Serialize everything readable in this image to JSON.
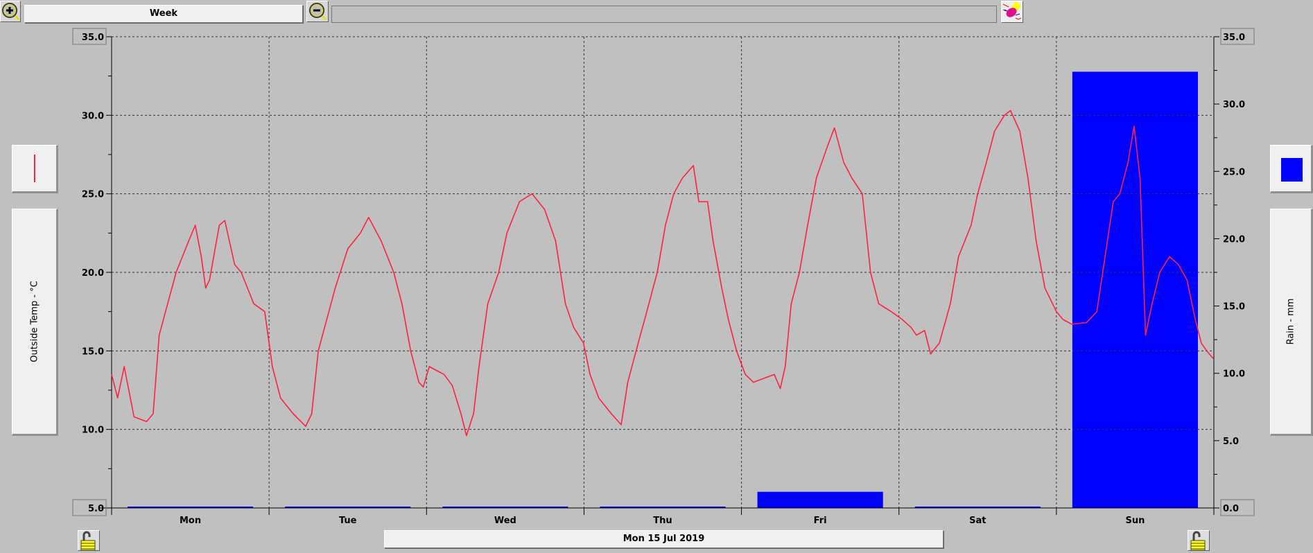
{
  "toolbar": {
    "zoom_in_icon": "zoom-in-magnifier-icon",
    "period_label": "Week",
    "zoom_out_icon": "zoom-out-magnifier-icon",
    "status_field": "",
    "eraser_icon": "eraser-icon"
  },
  "left_panel": {
    "legend_icon": "red-line-icon",
    "axis_title": "Outside Temp - °C"
  },
  "right_panel": {
    "legend_icon": "blue-square-icon",
    "axis_title": "Rain - mm"
  },
  "footer": {
    "date_label": "Mon 15 Jul 2019",
    "lock_icon": "padlock-icon"
  },
  "colors": {
    "temperature": "#ff2040",
    "rain": "#0000ff",
    "background": "#c0c0c0"
  },
  "chart_data": {
    "type": "line+bar",
    "categories": [
      "Mon",
      "Tue",
      "Wed",
      "Thu",
      "Fri",
      "Sat",
      "Sun"
    ],
    "grid": true,
    "left_axis": {
      "title": "Outside Temp - °C",
      "ylim": [
        5,
        35
      ],
      "ticks": [
        "35.0",
        "30.0",
        "25.0",
        "20.0",
        "15.0",
        "10.0",
        "5.0"
      ]
    },
    "right_axis": {
      "title": "Rain - mm",
      "ylim": [
        0,
        35
      ],
      "ticks": [
        "35.0",
        "30.0",
        "25.0",
        "20.0",
        "15.0",
        "10.0",
        "5.0",
        "0.0"
      ]
    },
    "series": [
      {
        "name": "Outside Temp - °C",
        "type": "line",
        "axis": "left",
        "color": "#ff2040",
        "points": [
          [
            "Mon 00:00",
            13.5
          ],
          [
            "Mon 00:55",
            12
          ],
          [
            "Mon 01:55",
            14
          ],
          [
            "Mon 03:25",
            10.8
          ],
          [
            "Mon 05:20",
            10.5
          ],
          [
            "Mon 06:20",
            11
          ],
          [
            "Mon 07:15",
            16
          ],
          [
            "Mon 09:50",
            20
          ],
          [
            "Mon 11:45",
            22
          ],
          [
            "Mon 12:45",
            23
          ],
          [
            "Mon 13:40",
            21
          ],
          [
            "Mon 14:20",
            19
          ],
          [
            "Mon 14:55",
            19.5
          ],
          [
            "Mon 16:25",
            23
          ],
          [
            "Mon 17:15",
            23.3
          ],
          [
            "Mon 18:45",
            20.5
          ],
          [
            "Mon 19:45",
            20
          ],
          [
            "Mon 21:40",
            18
          ],
          [
            "Mon 23:20",
            17.5
          ],
          [
            "Tue 00:30",
            14
          ],
          [
            "Tue 01:45",
            12
          ],
          [
            "Tue 03:40",
            11
          ],
          [
            "Tue 05:35",
            10.2
          ],
          [
            "Tue 06:30",
            11
          ],
          [
            "Tue 07:30",
            15
          ],
          [
            "Tue 10:05",
            19
          ],
          [
            "Tue 12:00",
            21.5
          ],
          [
            "Tue 13:55",
            22.5
          ],
          [
            "Tue 15:10",
            23.5
          ],
          [
            "Tue 17:05",
            22
          ],
          [
            "Tue 19:00",
            20
          ],
          [
            "Tue 20:15",
            18
          ],
          [
            "Tue 21:35",
            15
          ],
          [
            "Tue 22:50",
            13
          ],
          [
            "Tue 23:30",
            12.7
          ],
          [
            "Wed 00:25",
            14
          ],
          [
            "Wed 02:40",
            13.5
          ],
          [
            "Wed 03:55",
            12.8
          ],
          [
            "Wed 05:15",
            11
          ],
          [
            "Wed 06:05",
            9.6
          ],
          [
            "Wed 07:10",
            11
          ],
          [
            "Wed 08:00",
            14
          ],
          [
            "Wed 09:20",
            18
          ],
          [
            "Wed 11:00",
            20
          ],
          [
            "Wed 12:15",
            22.5
          ],
          [
            "Wed 14:10",
            24.5
          ],
          [
            "Wed 16:05",
            25
          ],
          [
            "Wed 18:00",
            24
          ],
          [
            "Wed 19:40",
            22
          ],
          [
            "Wed 21:10",
            18
          ],
          [
            "Wed 22:25",
            16.5
          ],
          [
            "Wed 23:55",
            15.5
          ],
          [
            "Thu 00:55",
            13.5
          ],
          [
            "Thu 02:15",
            12
          ],
          [
            "Thu 04:10",
            11
          ],
          [
            "Thu 05:40",
            10.3
          ],
          [
            "Thu 06:40",
            13
          ],
          [
            "Thu 08:35",
            16
          ],
          [
            "Thu 09:15",
            17
          ],
          [
            "Thu 11:10",
            20
          ],
          [
            "Thu 12:25",
            23
          ],
          [
            "Thu 13:40",
            25
          ],
          [
            "Thu 15:00",
            26
          ],
          [
            "Thu 16:40",
            26.8
          ],
          [
            "Thu 17:30",
            24.5
          ],
          [
            "Thu 18:50",
            24.5
          ],
          [
            "Thu 19:40",
            22
          ],
          [
            "Thu 21:00",
            19
          ],
          [
            "Thu 22:00",
            17
          ],
          [
            "Thu 23:15",
            15
          ],
          [
            "Fri 00:35",
            13.5
          ],
          [
            "Fri 01:50",
            13
          ],
          [
            "Fri 03:05",
            13.2
          ],
          [
            "Fri 05:00",
            13.5
          ],
          [
            "Fri 05:55",
            12.6
          ],
          [
            "Fri 06:40",
            14
          ],
          [
            "Fri 07:35",
            18
          ],
          [
            "Fri 08:50",
            20
          ],
          [
            "Fri 10:05",
            23
          ],
          [
            "Fri 11:25",
            26
          ],
          [
            "Fri 13:05",
            28
          ],
          [
            "Fri 14:10",
            29.2
          ],
          [
            "Fri 15:35",
            27
          ],
          [
            "Fri 16:50",
            26
          ],
          [
            "Fri 18:25",
            25
          ],
          [
            "Fri 19:40",
            20
          ],
          [
            "Fri 20:55",
            18
          ],
          [
            "Fri 22:50",
            17.5
          ],
          [
            "Sat 00:30",
            17
          ],
          [
            "Sat 01:50",
            16.5
          ],
          [
            "Sat 02:40",
            16
          ],
          [
            "Sat 03:55",
            16.3
          ],
          [
            "Sat 04:50",
            14.8
          ],
          [
            "Sat 06:10",
            15.5
          ],
          [
            "Sat 07:50",
            18
          ],
          [
            "Sat 09:05",
            21
          ],
          [
            "Sat 11:00",
            23
          ],
          [
            "Sat 12:00",
            25
          ],
          [
            "Sat 13:20",
            27
          ],
          [
            "Sat 14:35",
            29
          ],
          [
            "Sat 16:05",
            30
          ],
          [
            "Sat 17:00",
            30.3
          ],
          [
            "Sat 18:25",
            29
          ],
          [
            "Sat 19:40",
            26
          ],
          [
            "Sat 20:55",
            22
          ],
          [
            "Sat 22:15",
            19
          ],
          [
            "Sun 00:00",
            17.5
          ],
          [
            "Sun 01:00",
            17
          ],
          [
            "Sun 02:20",
            16.7
          ],
          [
            "Sun 04:35",
            16.8
          ],
          [
            "Sun 06:10",
            17.5
          ],
          [
            "Sun 07:25",
            21
          ],
          [
            "Sun 08:40",
            24.5
          ],
          [
            "Sun 09:40",
            25
          ],
          [
            "Sun 10:55",
            27
          ],
          [
            "Sun 11:50",
            29.3
          ],
          [
            "Sun 12:45",
            26
          ],
          [
            "Sun 13:35",
            16
          ],
          [
            "Sun 14:35",
            18
          ],
          [
            "Sun 15:45",
            20
          ],
          [
            "Sun 17:15",
            21
          ],
          [
            "Sun 18:35",
            20.5
          ],
          [
            "Sun 19:55",
            19.5
          ],
          [
            "Sun 21:10",
            17
          ],
          [
            "Sun 22:05",
            15.5
          ],
          [
            "Sun 22:55",
            15
          ],
          [
            "Sun 23:55",
            14.5
          ]
        ]
      },
      {
        "name": "Rain - mm",
        "type": "bar",
        "axis": "right",
        "color": "#0000ff",
        "values": [
          0,
          0,
          0,
          0,
          1.2,
          0,
          32.4
        ]
      }
    ]
  }
}
